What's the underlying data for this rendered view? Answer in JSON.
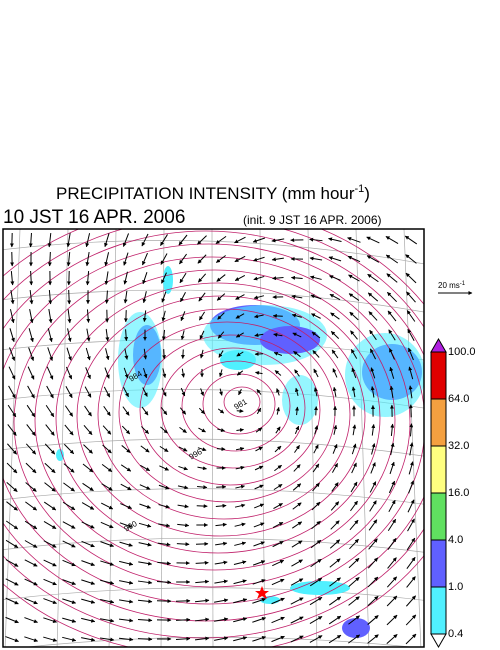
{
  "header": {
    "title": {
      "text": "PRECIPITATION INTENSITY (mm hour",
      "superscript": "-1",
      "suffix": ")"
    },
    "valid_time": "10 JST 16 APR. 2006",
    "init_note": "(init. 9 JST 16 APR. 2006)"
  },
  "vector_scale": {
    "text": "20 ms",
    "superscript": "-1"
  },
  "colorbar": {
    "levels": [
      {
        "value": 100,
        "label": "100.0"
      },
      {
        "value": 64,
        "label": "64.0"
      },
      {
        "value": 32,
        "label": "32.0"
      },
      {
        "value": 16,
        "label": "16.0"
      },
      {
        "value": 4,
        "label": "4.0"
      },
      {
        "value": 1,
        "label": "1.0"
      },
      {
        "value": 0.4,
        "label": "0.4"
      }
    ],
    "colors": [
      "#b020e0",
      "#e00000",
      "#f4a040",
      "#ffff80",
      "#60e060",
      "#6060ff",
      "#50f0ff",
      "#ffffff"
    ]
  },
  "contour_labels": [
    "981",
    "996",
    "984",
    "990"
  ]
}
